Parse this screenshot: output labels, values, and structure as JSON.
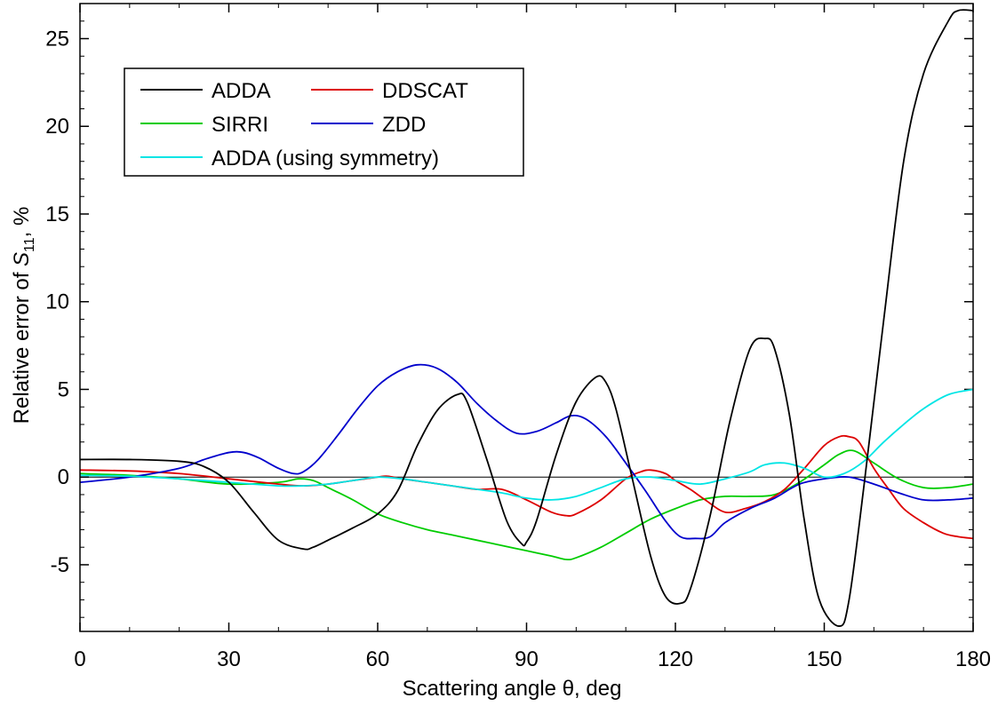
{
  "chart_data": {
    "type": "line",
    "xlabel": "Scattering angle θ, deg",
    "ylabel": "Relative error of S11, %",
    "xlim": [
      0,
      180
    ],
    "ylim": [
      -8.8,
      27
    ],
    "xticks": [
      0,
      30,
      60,
      90,
      120,
      150,
      180
    ],
    "yticks": [
      -5,
      0,
      5,
      10,
      15,
      20,
      25
    ],
    "x_minor_step": 10,
    "y_minor_step": 1,
    "grid": false,
    "zero_line": true,
    "legend_position": "top-left",
    "series": [
      {
        "name": "ADDA",
        "color": "#000000",
        "x": [
          0,
          10,
          20,
          25,
          30,
          35,
          40,
          45,
          47,
          50,
          55,
          60,
          64,
          68,
          72,
          76,
          78,
          82,
          86,
          89,
          90,
          92,
          96,
          100,
          104,
          106,
          108,
          111,
          115,
          118,
          121,
          123,
          127,
          131,
          135,
          138,
          140,
          143,
          146,
          149,
          153,
          155,
          158,
          162,
          166,
          170,
          175,
          177,
          180
        ],
        "y": [
          1.0,
          1.0,
          0.9,
          0.6,
          -0.3,
          -2.0,
          -3.6,
          -4.1,
          -4.0,
          -3.6,
          -2.9,
          -2.1,
          -0.8,
          1.8,
          3.8,
          4.7,
          4.3,
          1.0,
          -2.5,
          -3.8,
          -3.7,
          -2.5,
          1.3,
          4.3,
          5.7,
          5.4,
          3.9,
          0.3,
          -4.5,
          -6.8,
          -7.2,
          -6.4,
          -2.2,
          3.2,
          7.3,
          7.9,
          7.3,
          3.5,
          -2.5,
          -7.0,
          -8.5,
          -7.0,
          -0.5,
          9.0,
          18.0,
          23.0,
          26.0,
          26.6,
          26.6
        ]
      },
      {
        "name": "DDSCAT",
        "color": "#dd0000",
        "x": [
          0,
          10,
          20,
          30,
          40,
          45,
          50,
          55,
          60,
          62,
          65,
          70,
          75,
          80,
          85,
          90,
          95,
          98,
          100,
          105,
          110,
          113,
          115,
          118,
          120,
          123,
          126,
          130,
          134,
          138,
          142,
          146,
          150,
          153,
          155,
          157,
          160,
          163,
          166,
          170,
          174,
          177,
          180
        ],
        "y": [
          0.4,
          0.35,
          0.2,
          -0.1,
          -0.4,
          -0.5,
          -0.4,
          -0.2,
          0.0,
          0.05,
          -0.1,
          -0.3,
          -0.5,
          -0.7,
          -0.7,
          -1.3,
          -2.0,
          -2.2,
          -2.1,
          -1.3,
          -0.1,
          0.3,
          0.4,
          0.2,
          -0.2,
          -0.7,
          -1.3,
          -2.0,
          -1.8,
          -1.4,
          -0.7,
          0.5,
          1.8,
          2.3,
          2.3,
          2.0,
          0.5,
          -0.7,
          -1.8,
          -2.6,
          -3.2,
          -3.4,
          -3.5
        ]
      },
      {
        "name": "SIRRI",
        "color": "#00cc00",
        "x": [
          0,
          10,
          20,
          30,
          40,
          44,
          47,
          50,
          55,
          60,
          65,
          70,
          75,
          80,
          85,
          90,
          95,
          98,
          100,
          105,
          110,
          115,
          120,
          125,
          130,
          135,
          140,
          145,
          150,
          153,
          156,
          160,
          165,
          170,
          175,
          180
        ],
        "y": [
          0.2,
          0.1,
          -0.1,
          -0.4,
          -0.3,
          -0.1,
          -0.2,
          -0.6,
          -1.3,
          -2.1,
          -2.6,
          -3.0,
          -3.3,
          -3.6,
          -3.9,
          -4.2,
          -4.5,
          -4.7,
          -4.6,
          -4.0,
          -3.2,
          -2.4,
          -1.8,
          -1.3,
          -1.1,
          -1.1,
          -1.0,
          -0.3,
          0.7,
          1.3,
          1.5,
          0.8,
          -0.1,
          -0.6,
          -0.6,
          -0.4
        ]
      },
      {
        "name": "ZDD",
        "color": "#0000cc",
        "x": [
          0,
          10,
          20,
          25,
          30,
          33,
          36,
          40,
          43,
          45,
          48,
          52,
          56,
          60,
          64,
          68,
          72,
          76,
          80,
          84,
          88,
          92,
          96,
          99,
          102,
          106,
          110,
          114,
          118,
          121,
          124,
          127,
          130,
          135,
          140,
          145,
          150,
          155,
          160,
          165,
          170,
          175,
          180
        ],
        "y": [
          -0.3,
          0.0,
          0.5,
          1.0,
          1.4,
          1.4,
          1.1,
          0.5,
          0.2,
          0.3,
          1.0,
          2.4,
          3.9,
          5.2,
          6.0,
          6.4,
          6.2,
          5.4,
          4.2,
          3.2,
          2.5,
          2.6,
          3.1,
          3.5,
          3.3,
          2.3,
          0.8,
          -0.8,
          -2.5,
          -3.4,
          -3.5,
          -3.4,
          -2.6,
          -1.8,
          -1.2,
          -0.4,
          -0.1,
          0.0,
          -0.4,
          -0.9,
          -1.3,
          -1.3,
          -1.2
        ]
      },
      {
        "name": "ADDA (using symmetry)",
        "color": "#00e5e5",
        "x": [
          0,
          10,
          20,
          30,
          40,
          45,
          50,
          55,
          60,
          65,
          70,
          75,
          80,
          85,
          90,
          95,
          100,
          105,
          110,
          115,
          120,
          125,
          130,
          135,
          138,
          142,
          146,
          150,
          154,
          158,
          162,
          166,
          170,
          175,
          180
        ],
        "y": [
          0.1,
          0.05,
          -0.1,
          -0.3,
          -0.5,
          -0.5,
          -0.4,
          -0.2,
          0.0,
          -0.1,
          -0.3,
          -0.5,
          -0.7,
          -0.9,
          -1.2,
          -1.3,
          -1.1,
          -0.6,
          -0.1,
          0.0,
          -0.2,
          -0.4,
          -0.1,
          0.3,
          0.7,
          0.8,
          0.5,
          0.0,
          0.2,
          0.9,
          2.0,
          3.0,
          3.9,
          4.7,
          5.0
        ]
      }
    ]
  }
}
